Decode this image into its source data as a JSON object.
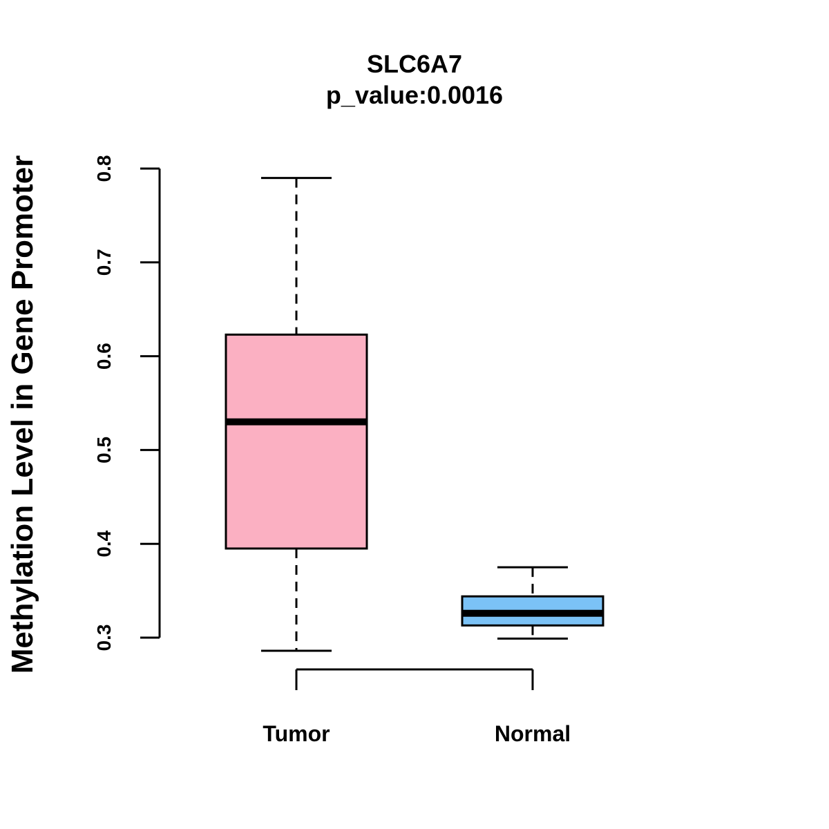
{
  "chart_data": {
    "type": "boxplot",
    "title": "SLC6A7",
    "subtitle": "p_value:0.0016",
    "xlabel": "",
    "ylabel": "Methylation Level in Gene Promoter",
    "ylim": [
      0.3,
      0.8
    ],
    "yticks": [
      "0.3",
      "0.4",
      "0.5",
      "0.6",
      "0.7",
      "0.8"
    ],
    "categories": [
      "Tumor",
      "Normal"
    ],
    "series": [
      {
        "name": "Tumor",
        "min": 0.286,
        "q1": 0.395,
        "median": 0.53,
        "q3": 0.623,
        "max": 0.79,
        "color": "#FBB0C2"
      },
      {
        "name": "Normal",
        "min": 0.299,
        "q1": 0.313,
        "median": 0.326,
        "q3": 0.344,
        "max": 0.375,
        "color": "#7BC2F6"
      }
    ],
    "grid": false,
    "legend": "none"
  }
}
